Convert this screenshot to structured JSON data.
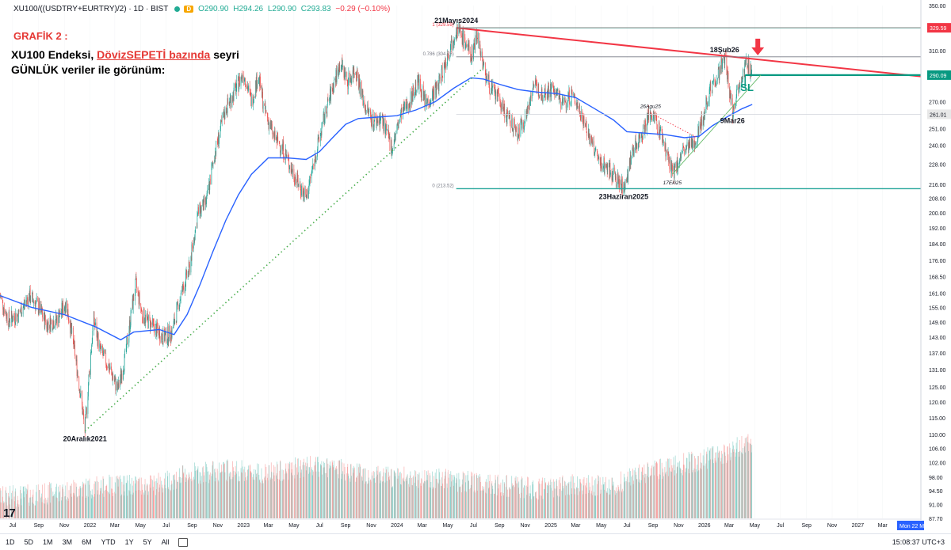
{
  "header": {
    "symbol": "XU100/((USDTRY+EURTRY)/2) · 1D · BIST",
    "open": "O290.90",
    "high": "H294.26",
    "low": "L290.90",
    "close": "C293.83",
    "change": "−0.29 (−0.10%)",
    "d_badge": "D"
  },
  "annotations": {
    "title": "GRAFİK 2 :",
    "line1_pre": "XU100 Endeksi, ",
    "line1_red": "DövizSEPETİ bazında",
    "line1_post": " seyri",
    "line2": "GÜNLÜK veriler ile görünüm:"
  },
  "chart_data": {
    "type": "line",
    "title": "",
    "yscale": "log",
    "ylim": [
      87.7,
      350.0
    ],
    "xlim": [
      "2021-06-01",
      "2027-05-31"
    ],
    "y_ticks": [
      "350.00",
      "329.59",
      "310.00",
      "290.09",
      "270.00",
      "261.01",
      "251.00",
      "240.00",
      "228.00",
      "216.00",
      "208.00",
      "200.00",
      "192.00",
      "184.00",
      "176.00",
      "168.50",
      "161.00",
      "155.00",
      "149.00",
      "143.00",
      "137.00",
      "131.00",
      "125.00",
      "120.00",
      "115.00",
      "110.00",
      "106.00",
      "102.00",
      "98.00",
      "94.50",
      "91.00",
      "87.70"
    ],
    "y_tick_values": [
      350,
      329.59,
      310,
      290.09,
      270,
      261.01,
      251,
      240,
      228,
      216,
      208,
      200,
      192,
      184,
      176,
      168.5,
      161,
      155,
      149,
      143,
      137,
      131,
      125,
      120,
      115,
      110,
      106,
      102,
      98,
      94.5,
      91,
      87.7
    ],
    "x_ticks": [
      {
        "label": "Jul",
        "date": "2021-07-01"
      },
      {
        "label": "Sep",
        "date": "2021-09-01"
      },
      {
        "label": "Nov",
        "date": "2021-11-01"
      },
      {
        "label": "2022",
        "date": "2022-01-01"
      },
      {
        "label": "Mar",
        "date": "2022-03-01"
      },
      {
        "label": "May",
        "date": "2022-05-01"
      },
      {
        "label": "Jul",
        "date": "2022-07-01"
      },
      {
        "label": "Sep",
        "date": "2022-09-01"
      },
      {
        "label": "Nov",
        "date": "2022-11-01"
      },
      {
        "label": "2023",
        "date": "2023-01-01"
      },
      {
        "label": "Mar",
        "date": "2023-03-01"
      },
      {
        "label": "May",
        "date": "2023-05-01"
      },
      {
        "label": "Jul",
        "date": "2023-07-01"
      },
      {
        "label": "Sep",
        "date": "2023-09-01"
      },
      {
        "label": "Nov",
        "date": "2023-11-01"
      },
      {
        "label": "2024",
        "date": "2024-01-01"
      },
      {
        "label": "Mar",
        "date": "2024-03-01"
      },
      {
        "label": "May",
        "date": "2024-05-01"
      },
      {
        "label": "Jul",
        "date": "2024-07-01"
      },
      {
        "label": "Sep",
        "date": "2024-09-01"
      },
      {
        "label": "Nov",
        "date": "2024-11-01"
      },
      {
        "label": "2025",
        "date": "2025-01-01"
      },
      {
        "label": "Mar",
        "date": "2025-03-01"
      },
      {
        "label": "May",
        "date": "2025-05-01"
      },
      {
        "label": "Jul",
        "date": "2025-07-01"
      },
      {
        "label": "Sep",
        "date": "2025-09-01"
      },
      {
        "label": "Nov",
        "date": "2025-11-01"
      },
      {
        "label": "2026",
        "date": "2026-01-01"
      },
      {
        "label": "Mar",
        "date": "2026-03-01"
      },
      {
        "label": "May",
        "date": "2026-05-01"
      },
      {
        "label": "Jul",
        "date": "2026-07-01"
      },
      {
        "label": "Sep",
        "date": "2026-09-01"
      },
      {
        "label": "Nov",
        "date": "2026-11-01"
      },
      {
        "label": "2027",
        "date": "2027-01-01"
      },
      {
        "label": "Mar",
        "date": "2027-03-01"
      }
    ],
    "x_date_tag": "Mon 22 M",
    "price_badges": [
      {
        "label": "329.59",
        "value": 329.59,
        "color": "#f23645"
      },
      {
        "label": "290.09",
        "value": 290.09,
        "color": "#089981"
      },
      {
        "label": "261.01",
        "value": 261.01,
        "color": "#e8e8e8"
      }
    ],
    "price_keypoints": [
      [
        "2021-06-01",
        160
      ],
      [
        "2021-06-20",
        150
      ],
      [
        "2021-07-15",
        152
      ],
      [
        "2021-08-10",
        160
      ],
      [
        "2021-09-01",
        155
      ],
      [
        "2021-09-20",
        148
      ],
      [
        "2021-10-15",
        150
      ],
      [
        "2021-11-05",
        157
      ],
      [
        "2021-11-25",
        138
      ],
      [
        "2021-12-20",
        111
      ],
      [
        "2022-01-10",
        150
      ],
      [
        "2022-01-25",
        138
      ],
      [
        "2022-02-15",
        132
      ],
      [
        "2022-03-08",
        124
      ],
      [
        "2022-03-25",
        135
      ],
      [
        "2022-04-20",
        165
      ],
      [
        "2022-05-05",
        152
      ],
      [
        "2022-06-01",
        147
      ],
      [
        "2022-06-25",
        143
      ],
      [
        "2022-07-15",
        145
      ],
      [
        "2022-08-05",
        160
      ],
      [
        "2022-08-25",
        172
      ],
      [
        "2022-09-15",
        200
      ],
      [
        "2022-10-05",
        206
      ],
      [
        "2022-10-25",
        235
      ],
      [
        "2022-11-20",
        265
      ],
      [
        "2022-12-15",
        280
      ],
      [
        "2023-01-01",
        292
      ],
      [
        "2023-01-20",
        270
      ],
      [
        "2023-02-05",
        290
      ],
      [
        "2023-02-20",
        264
      ],
      [
        "2023-03-15",
        245
      ],
      [
        "2023-04-05",
        238
      ],
      [
        "2023-04-25",
        225
      ],
      [
        "2023-05-15",
        215
      ],
      [
        "2023-05-30",
        208
      ],
      [
        "2023-06-20",
        232
      ],
      [
        "2023-07-15",
        262
      ],
      [
        "2023-08-05",
        285
      ],
      [
        "2023-08-20",
        300
      ],
      [
        "2023-09-05",
        285
      ],
      [
        "2023-09-25",
        295
      ],
      [
        "2023-10-15",
        268
      ],
      [
        "2023-11-05",
        256
      ],
      [
        "2023-11-25",
        258
      ],
      [
        "2023-12-20",
        238
      ],
      [
        "2024-01-10",
        260
      ],
      [
        "2024-01-30",
        270
      ],
      [
        "2024-02-20",
        285
      ],
      [
        "2024-03-10",
        268
      ],
      [
        "2024-04-05",
        280
      ],
      [
        "2024-04-25",
        300
      ],
      [
        "2024-05-21",
        329.59
      ],
      [
        "2024-06-10",
        318
      ],
      [
        "2024-06-25",
        305
      ],
      [
        "2024-07-10",
        325
      ],
      [
        "2024-07-25",
        296
      ],
      [
        "2024-08-10",
        280
      ],
      [
        "2024-08-30",
        272
      ],
      [
        "2024-09-20",
        258
      ],
      [
        "2024-10-15",
        248
      ],
      [
        "2024-11-05",
        262
      ],
      [
        "2024-11-20",
        283
      ],
      [
        "2024-12-10",
        276
      ],
      [
        "2025-01-05",
        280
      ],
      [
        "2025-01-30",
        268
      ],
      [
        "2025-02-20",
        275
      ],
      [
        "2025-03-15",
        262
      ],
      [
        "2025-04-05",
        243
      ],
      [
        "2025-04-25",
        230
      ],
      [
        "2025-05-20",
        225
      ],
      [
        "2025-06-23",
        213.52
      ],
      [
        "2025-07-15",
        236
      ],
      [
        "2025-08-05",
        248
      ],
      [
        "2025-08-26",
        262
      ],
      [
        "2025-09-20",
        248
      ],
      [
        "2025-10-17",
        222
      ],
      [
        "2025-11-10",
        235
      ],
      [
        "2025-12-05",
        240
      ],
      [
        "2025-12-25",
        255
      ],
      [
        "2026-01-15",
        280
      ],
      [
        "2026-02-05",
        292
      ],
      [
        "2026-02-18",
        304
      ],
      [
        "2026-03-09",
        262
      ],
      [
        "2026-03-25",
        285
      ],
      [
        "2026-04-10",
        298
      ],
      [
        "2026-04-25",
        293.83
      ]
    ],
    "ma_keypoints": [
      [
        "2021-06-01",
        160
      ],
      [
        "2021-08-15",
        155
      ],
      [
        "2021-11-01",
        152
      ],
      [
        "2022-01-15",
        147
      ],
      [
        "2022-03-15",
        142
      ],
      [
        "2022-04-15",
        145
      ],
      [
        "2022-06-15",
        146
      ],
      [
        "2022-07-20",
        144
      ],
      [
        "2022-08-20",
        152
      ],
      [
        "2022-09-20",
        165
      ],
      [
        "2022-10-20",
        180
      ],
      [
        "2022-11-20",
        196
      ],
      [
        "2022-12-20",
        210
      ],
      [
        "2023-01-20",
        222
      ],
      [
        "2023-03-01",
        232
      ],
      [
        "2023-04-15",
        232
      ],
      [
        "2023-05-30",
        231
      ],
      [
        "2023-07-01",
        236
      ],
      [
        "2023-08-01",
        245
      ],
      [
        "2023-09-01",
        254
      ],
      [
        "2023-10-01",
        258
      ],
      [
        "2023-11-15",
        259
      ],
      [
        "2024-01-01",
        260
      ],
      [
        "2024-02-15",
        264
      ],
      [
        "2024-04-01",
        270
      ],
      [
        "2024-05-15",
        280
      ],
      [
        "2024-06-25",
        288
      ],
      [
        "2024-07-25",
        287
      ],
      [
        "2024-09-01",
        283
      ],
      [
        "2024-10-15",
        279
      ],
      [
        "2024-12-01",
        277
      ],
      [
        "2025-01-15",
        276
      ],
      [
        "2025-03-01",
        273
      ],
      [
        "2025-04-15",
        265
      ],
      [
        "2025-05-30",
        257
      ],
      [
        "2025-07-01",
        249
      ],
      [
        "2025-08-15",
        248
      ],
      [
        "2025-10-01",
        247
      ],
      [
        "2025-11-15",
        245
      ],
      [
        "2025-12-20",
        246
      ],
      [
        "2026-01-20",
        253
      ],
      [
        "2026-03-01",
        260
      ],
      [
        "2026-04-01",
        265
      ],
      [
        "2026-04-25",
        268
      ]
    ],
    "volume_keypoints": [
      [
        "2021-06-01",
        93
      ],
      [
        "2021-09-01",
        93.5
      ],
      [
        "2021-12-01",
        95
      ],
      [
        "2022-03-01",
        96
      ],
      [
        "2022-06-01",
        96
      ],
      [
        "2022-09-01",
        99
      ],
      [
        "2022-12-01",
        100
      ],
      [
        "2023-03-01",
        99
      ],
      [
        "2023-06-01",
        101
      ],
      [
        "2023-09-01",
        100
      ],
      [
        "2023-12-01",
        98
      ],
      [
        "2024-03-01",
        98
      ],
      [
        "2024-06-01",
        97
      ],
      [
        "2024-09-01",
        96
      ],
      [
        "2024-12-01",
        95
      ],
      [
        "2025-03-01",
        96
      ],
      [
        "2025-06-01",
        96
      ],
      [
        "2025-09-01",
        100
      ],
      [
        "2025-12-01",
        102
      ],
      [
        "2026-03-01",
        105
      ],
      [
        "2026-04-25",
        108
      ]
    ],
    "fib_levels": [
      {
        "label": "1 (329.59)",
        "value": 329.59
      },
      {
        "label": "0.786 (304.75)",
        "value": 304.75
      },
      {
        "label": "0 (213.52)",
        "value": 213.52
      }
    ],
    "point_labels": [
      {
        "text": "21Mayıs2024",
        "date": "2024-05-21",
        "value": 329.59,
        "pos": "above"
      },
      {
        "text": "18Şub26",
        "date": "2026-02-18",
        "value": 304.75,
        "pos": "above"
      },
      {
        "text": "26Agu25",
        "date": "2025-08-26",
        "value": 262,
        "pos": "above",
        "italic": true
      },
      {
        "text": "9Mar26",
        "date": "2026-03-09",
        "value": 262,
        "pos": "below"
      },
      {
        "text": "17Eki25",
        "date": "2025-10-17",
        "value": 222,
        "pos": "below",
        "italic": true
      },
      {
        "text": "23Haziran2025",
        "date": "2025-06-23",
        "value": 213.52,
        "pos": "below"
      },
      {
        "text": "20Aralık2021",
        "date": "2021-12-20",
        "value": 111,
        "pos": "below"
      }
    ],
    "sl_label": "SL",
    "colors": {
      "up": "#26a69a",
      "down": "#ef5350",
      "ma": "#2962ff",
      "resistance": "#f23645",
      "support_dotted": "#4caf50",
      "fib": "#26a69a",
      "sl_line": "#089981"
    }
  },
  "bottom_bar": {
    "ranges": [
      "1D",
      "5D",
      "1M",
      "3M",
      "6M",
      "YTD",
      "1Y",
      "5Y",
      "All"
    ],
    "clock": "15:08:37 UTC+3"
  }
}
